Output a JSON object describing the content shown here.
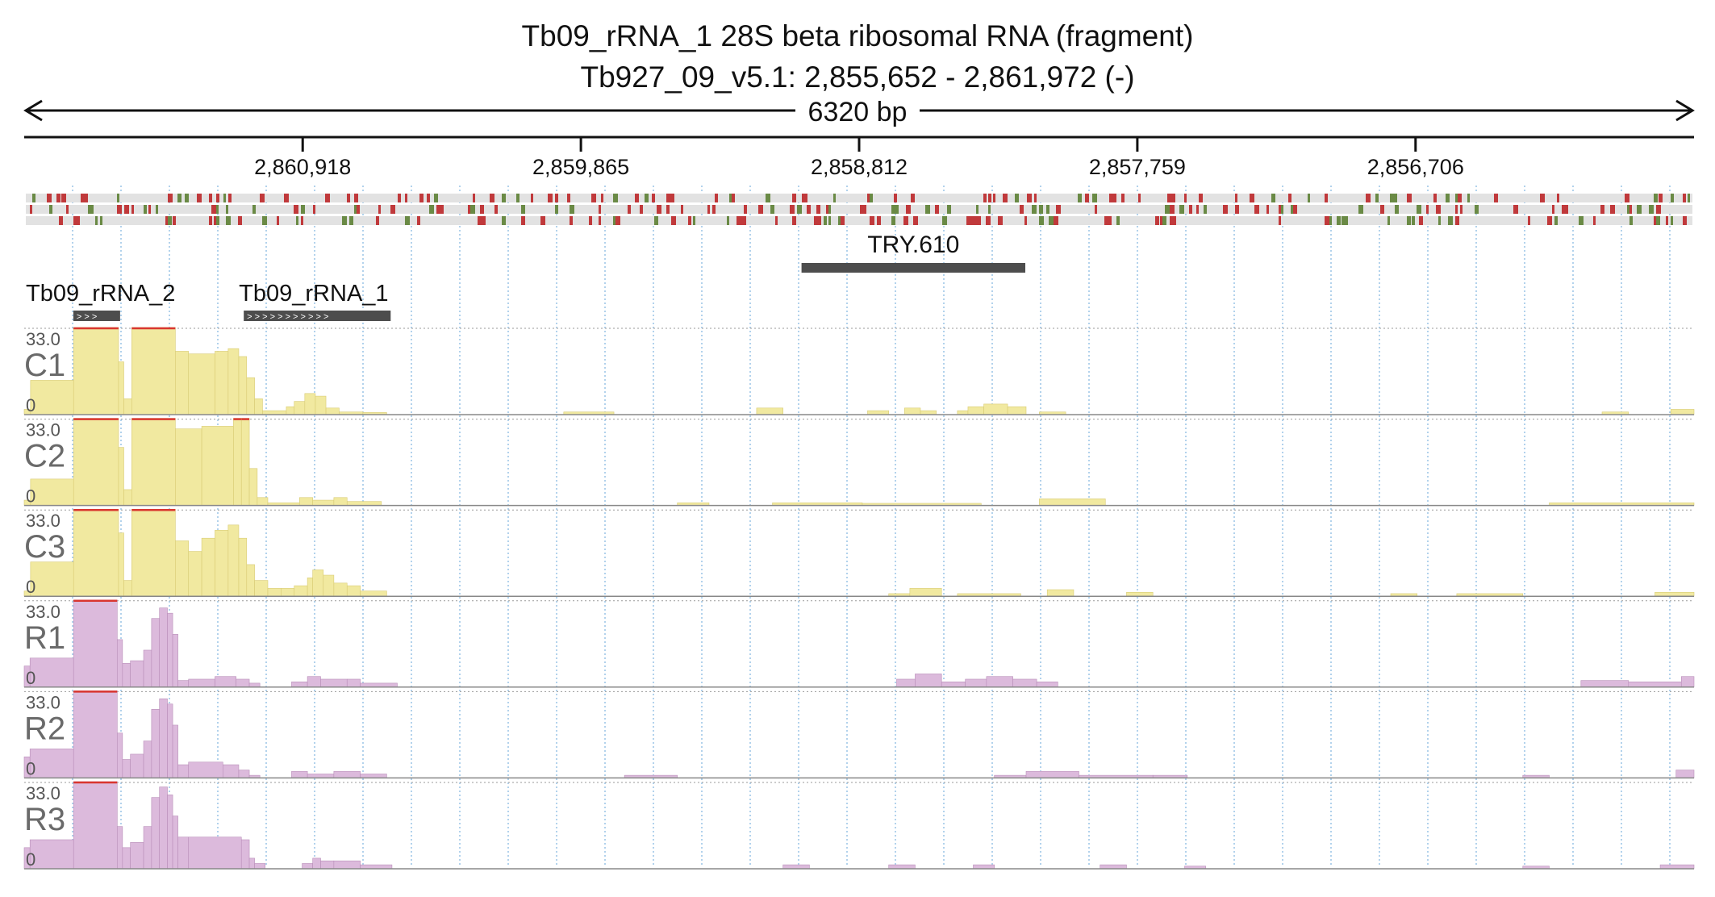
{
  "title": {
    "line1": "Tb09_rRNA_1  28S beta ribosomal RNA (fragment)",
    "line2": "Tb927_09_v5.1: 2,855,652 - 2,861,972 (-)"
  },
  "ruler": {
    "span_label": "6320 bp",
    "ticks": [
      {
        "value": 2860918,
        "label": "2,860,918"
      },
      {
        "value": 2859865,
        "label": "2,859,865"
      },
      {
        "value": 2858812,
        "label": "2,858,812"
      },
      {
        "value": 2857759,
        "label": "2,857,759"
      },
      {
        "value": 2856706,
        "label": "2,856,706"
      }
    ]
  },
  "colors": {
    "conservation_red": "#c0393b",
    "conservation_green": "#6a8a45",
    "conservation_bg": "#e2e2e2",
    "control_fill": "#f1e9a0",
    "control_stroke": "#d8cb74",
    "rnai_fill": "#dcbadc",
    "rnai_stroke": "#b98fb9",
    "clip_line": "#d9362f",
    "feature_bar": "#4d4d4d",
    "grid": "#7fb4e0"
  },
  "features": [
    {
      "name": "Tb09_rRNA_2",
      "label": "Tb09_rRNA_2",
      "start": 2861786,
      "end": 2861609,
      "arrows": "> > >"
    },
    {
      "name": "Tb09_rRNA_1",
      "label": "Tb09_rRNA_1",
      "start": 2861141,
      "end": 2860585,
      "arrows": "> > > > > > > > > > >"
    },
    {
      "name": "TRY.610",
      "label": "TRY.610",
      "start": 2859030,
      "end": 2858183,
      "arrows": ""
    }
  ],
  "chart_data": {
    "type": "area",
    "x_domain": [
      2861972,
      2855652
    ],
    "ylim": [
      0,
      33.0
    ],
    "y_max_label": "33.0",
    "y_min_label": "0",
    "tracks": [
      {
        "name": "C1",
        "group": "control",
        "segments": [
          [
            2861972,
            2861948,
            2
          ],
          [
            2861948,
            2861785,
            13
          ],
          [
            2861785,
            2861615,
            33
          ],
          [
            2861615,
            2861595,
            20
          ],
          [
            2861595,
            2861565,
            6
          ],
          [
            2861565,
            2861400,
            33
          ],
          [
            2861400,
            2861350,
            24
          ],
          [
            2861350,
            2861250,
            23
          ],
          [
            2861250,
            2861200,
            24
          ],
          [
            2861200,
            2861160,
            25
          ],
          [
            2861160,
            2861130,
            22
          ],
          [
            2861130,
            2861100,
            14
          ],
          [
            2861100,
            2861070,
            6
          ],
          [
            2861070,
            2860980,
            1.5
          ],
          [
            2860980,
            2860950,
            3
          ],
          [
            2860950,
            2860910,
            5
          ],
          [
            2860910,
            2860870,
            8
          ],
          [
            2860870,
            2860830,
            7
          ],
          [
            2860830,
            2860780,
            2.5
          ],
          [
            2860780,
            2860690,
            1
          ],
          [
            2860690,
            2860600,
            0.8
          ],
          [
            2859930,
            2859740,
            1
          ],
          [
            2859200,
            2859100,
            2.5
          ],
          [
            2858780,
            2858700,
            1.5
          ],
          [
            2858640,
            2858580,
            2.5
          ],
          [
            2858580,
            2858520,
            1.5
          ],
          [
            2858440,
            2858400,
            1.5
          ],
          [
            2858400,
            2858340,
            3
          ],
          [
            2858340,
            2858250,
            4
          ],
          [
            2858250,
            2858180,
            3
          ],
          [
            2858130,
            2858030,
            1
          ],
          [
            2856000,
            2855900,
            1
          ],
          [
            2855740,
            2855652,
            2
          ]
        ]
      },
      {
        "name": "C2",
        "group": "control",
        "segments": [
          [
            2861972,
            2861948,
            2
          ],
          [
            2861948,
            2861785,
            10
          ],
          [
            2861785,
            2861615,
            33
          ],
          [
            2861615,
            2861595,
            22
          ],
          [
            2861595,
            2861565,
            6
          ],
          [
            2861565,
            2861400,
            33
          ],
          [
            2861400,
            2861300,
            29
          ],
          [
            2861300,
            2861180,
            30
          ],
          [
            2861180,
            2861150,
            33
          ],
          [
            2861150,
            2861120,
            33
          ],
          [
            2861120,
            2861090,
            14
          ],
          [
            2861090,
            2861050,
            3
          ],
          [
            2861050,
            2860930,
            1
          ],
          [
            2860930,
            2860880,
            3
          ],
          [
            2860880,
            2860800,
            2
          ],
          [
            2860800,
            2860750,
            3
          ],
          [
            2860750,
            2860620,
            1.5
          ],
          [
            2859500,
            2859380,
            1
          ],
          [
            2859140,
            2858800,
            1
          ],
          [
            2858800,
            2858350,
            0.8
          ],
          [
            2858130,
            2857880,
            2.5
          ],
          [
            2856200,
            2855652,
            1
          ]
        ]
      },
      {
        "name": "C3",
        "group": "control",
        "segments": [
          [
            2861972,
            2861948,
            2
          ],
          [
            2861948,
            2861785,
            13
          ],
          [
            2861785,
            2861615,
            33
          ],
          [
            2861615,
            2861595,
            24
          ],
          [
            2861595,
            2861565,
            6
          ],
          [
            2861565,
            2861400,
            33
          ],
          [
            2861400,
            2861350,
            21
          ],
          [
            2861350,
            2861300,
            17
          ],
          [
            2861300,
            2861250,
            22
          ],
          [
            2861250,
            2861200,
            25
          ],
          [
            2861200,
            2861160,
            27
          ],
          [
            2861160,
            2861130,
            22
          ],
          [
            2861130,
            2861100,
            12
          ],
          [
            2861100,
            2861050,
            6
          ],
          [
            2861050,
            2861000,
            3
          ],
          [
            2861000,
            2860950,
            3
          ],
          [
            2860950,
            2860900,
            4
          ],
          [
            2860900,
            2860880,
            7
          ],
          [
            2860880,
            2860840,
            10
          ],
          [
            2860840,
            2860800,
            8
          ],
          [
            2860800,
            2860750,
            5
          ],
          [
            2860750,
            2860700,
            4
          ],
          [
            2860700,
            2860600,
            2
          ],
          [
            2858700,
            2858620,
            1
          ],
          [
            2858620,
            2858500,
            3
          ],
          [
            2858440,
            2858200,
            1
          ],
          [
            2858100,
            2858000,
            2.5
          ],
          [
            2857800,
            2857700,
            1.5
          ],
          [
            2856800,
            2856700,
            1
          ],
          [
            2856550,
            2856300,
            1
          ],
          [
            2855800,
            2855652,
            1.5
          ]
        ]
      },
      {
        "name": "R1",
        "group": "rnai",
        "segments": [
          [
            2861972,
            2861950,
            8
          ],
          [
            2861950,
            2861785,
            11
          ],
          [
            2861785,
            2861620,
            33
          ],
          [
            2861620,
            2861600,
            18
          ],
          [
            2861600,
            2861570,
            9
          ],
          [
            2861570,
            2861520,
            10
          ],
          [
            2861520,
            2861490,
            14
          ],
          [
            2861490,
            2861460,
            26
          ],
          [
            2861460,
            2861430,
            30
          ],
          [
            2861430,
            2861410,
            28
          ],
          [
            2861410,
            2861390,
            20
          ],
          [
            2861390,
            2861350,
            2.5
          ],
          [
            2861350,
            2861250,
            3
          ],
          [
            2861250,
            2861170,
            4
          ],
          [
            2861170,
            2861120,
            3
          ],
          [
            2861120,
            2861080,
            1.5
          ],
          [
            2860960,
            2860900,
            2
          ],
          [
            2860900,
            2860850,
            4
          ],
          [
            2860850,
            2860750,
            3
          ],
          [
            2860750,
            2860700,
            3
          ],
          [
            2860700,
            2860560,
            1.5
          ],
          [
            2858670,
            2858600,
            3
          ],
          [
            2858600,
            2858500,
            5
          ],
          [
            2858500,
            2858410,
            2
          ],
          [
            2858410,
            2858330,
            3
          ],
          [
            2858330,
            2858230,
            4
          ],
          [
            2858230,
            2858140,
            3
          ],
          [
            2858140,
            2858060,
            2
          ],
          [
            2856080,
            2855900,
            2.5
          ],
          [
            2855900,
            2855700,
            2
          ],
          [
            2855700,
            2855652,
            4
          ]
        ]
      },
      {
        "name": "R2",
        "group": "rnai",
        "segments": [
          [
            2861972,
            2861950,
            8
          ],
          [
            2861950,
            2861785,
            11
          ],
          [
            2861785,
            2861620,
            33
          ],
          [
            2861620,
            2861600,
            17
          ],
          [
            2861600,
            2861570,
            7
          ],
          [
            2861570,
            2861520,
            9
          ],
          [
            2861520,
            2861490,
            14
          ],
          [
            2861490,
            2861460,
            26
          ],
          [
            2861460,
            2861430,
            30
          ],
          [
            2861430,
            2861410,
            28
          ],
          [
            2861410,
            2861390,
            20
          ],
          [
            2861390,
            2861350,
            5
          ],
          [
            2861350,
            2861220,
            6
          ],
          [
            2861220,
            2861160,
            5
          ],
          [
            2861160,
            2861120,
            3
          ],
          [
            2861120,
            2861080,
            1
          ],
          [
            2860960,
            2860900,
            2.5
          ],
          [
            2860900,
            2860800,
            1.5
          ],
          [
            2860800,
            2860700,
            2.5
          ],
          [
            2860700,
            2860600,
            1.5
          ],
          [
            2859700,
            2859500,
            1
          ],
          [
            2858300,
            2858180,
            1
          ],
          [
            2858180,
            2857980,
            2.5
          ],
          [
            2857980,
            2857700,
            1
          ],
          [
            2857700,
            2857570,
            1
          ],
          [
            2856300,
            2856200,
            1
          ],
          [
            2855720,
            2855652,
            3
          ]
        ]
      },
      {
        "name": "R3",
        "group": "rnai",
        "segments": [
          [
            2861972,
            2861950,
            8
          ],
          [
            2861950,
            2861785,
            11
          ],
          [
            2861785,
            2861620,
            33
          ],
          [
            2861620,
            2861600,
            16
          ],
          [
            2861600,
            2861570,
            8
          ],
          [
            2861570,
            2861520,
            10
          ],
          [
            2861520,
            2861490,
            16
          ],
          [
            2861490,
            2861460,
            27
          ],
          [
            2861460,
            2861430,
            31
          ],
          [
            2861430,
            2861410,
            28
          ],
          [
            2861410,
            2861390,
            20
          ],
          [
            2861390,
            2861350,
            12
          ],
          [
            2861350,
            2861150,
            12
          ],
          [
            2861150,
            2861120,
            11
          ],
          [
            2861120,
            2861100,
            4
          ],
          [
            2861100,
            2861060,
            2
          ],
          [
            2860920,
            2860880,
            2
          ],
          [
            2860880,
            2860850,
            4
          ],
          [
            2860850,
            2860800,
            3
          ],
          [
            2860800,
            2860700,
            3
          ],
          [
            2860700,
            2860580,
            1.5
          ],
          [
            2859100,
            2859000,
            1.5
          ],
          [
            2858700,
            2858600,
            1.5
          ],
          [
            2858380,
            2858300,
            1.5
          ],
          [
            2857900,
            2857800,
            1.5
          ],
          [
            2857580,
            2857500,
            1
          ],
          [
            2856300,
            2856200,
            1
          ],
          [
            2855780,
            2855652,
            1.5
          ]
        ]
      }
    ]
  }
}
